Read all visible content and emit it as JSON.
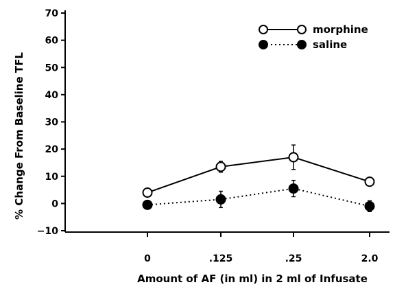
{
  "chart_data": {
    "type": "line",
    "title": "",
    "xlabel": "Amount of AF (in ml) in 2 ml of Infusate",
    "ylabel": "% Change From Baseline TFL",
    "categories": [
      "0",
      ".125",
      ".25",
      "2.0"
    ],
    "ylim": [
      -10,
      70
    ],
    "yticks": [
      "70",
      "60",
      "50",
      "40",
      "30",
      "20",
      "10",
      "0",
      "−10"
    ],
    "ytick_values": [
      70,
      60,
      50,
      40,
      30,
      20,
      10,
      0,
      -10
    ],
    "grid": false,
    "legend_position": "top-right",
    "series": [
      {
        "name": "morphine",
        "marker": "open-circle",
        "line_style": "solid",
        "values": [
          4,
          13.5,
          17,
          8
        ],
        "error": [
          0.5,
          2,
          4.5,
          0.7
        ]
      },
      {
        "name": "saline",
        "marker": "filled-circle",
        "line_style": "dotted",
        "values": [
          -0.5,
          1.5,
          5.5,
          -1
        ],
        "error": [
          0.5,
          3,
          3,
          2
        ]
      }
    ]
  }
}
